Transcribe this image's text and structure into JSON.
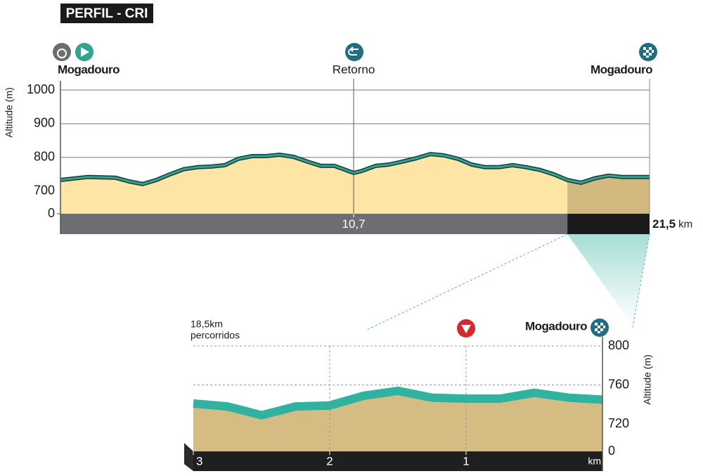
{
  "title": "PERFIL - CRI",
  "chart_data": [
    {
      "type": "area",
      "y_label": "Altitude (m)",
      "x_unit": "km",
      "x": [
        0,
        1,
        2,
        2.5,
        3,
        3.5,
        4,
        4.5,
        5,
        5.5,
        6,
        6.5,
        7,
        7.5,
        8,
        8.5,
        9,
        9.5,
        10,
        10.5,
        10.7,
        11,
        11.5,
        12,
        12.5,
        13,
        13.5,
        14,
        14.5,
        15,
        15.5,
        16,
        16.5,
        17,
        17.5,
        18,
        18.5,
        19,
        19.5,
        20,
        20.5,
        21,
        21.5
      ],
      "values": [
        733,
        742,
        740,
        729,
        721,
        733,
        750,
        765,
        771,
        773,
        777,
        796,
        804,
        804,
        808,
        802,
        788,
        775,
        775,
        760,
        754,
        760,
        775,
        779,
        788,
        798,
        810,
        806,
        796,
        779,
        771,
        771,
        777,
        771,
        763,
        750,
        733,
        725,
        738,
        746,
        742,
        742,
        742
      ],
      "xlim": [
        0,
        21.5
      ],
      "ylim": [
        633,
        1000
      ],
      "yticks": [
        0,
        700,
        800,
        900,
        1000
      ],
      "axis_break": true,
      "xticks": [
        {
          "value": 10.7,
          "label": "10,7"
        },
        {
          "value": 21.5,
          "label": "21,5"
        }
      ],
      "places": [
        {
          "name": "Mogadouro",
          "x": 0
        },
        {
          "name": "Retorno",
          "x": 10.7
        },
        {
          "name": "Mogadouro",
          "x": 21.5
        }
      ],
      "highlight": [
        18.5,
        21.5
      ],
      "color": "#fde6a5",
      "highlight_color": "#d3b97f",
      "line_color": "#2ca592"
    },
    {
      "type": "area",
      "y_label": "Altitude (m)",
      "x_unit": "km",
      "note": [
        "18,5km",
        "percorridos"
      ],
      "x": [
        3,
        2.75,
        2.5,
        2.25,
        2,
        1.75,
        1.5,
        1.25,
        1,
        0.75,
        0.5,
        0.25,
        0
      ],
      "values": [
        741,
        738,
        729,
        738,
        739,
        749,
        754,
        747,
        746,
        746,
        752,
        747,
        745
      ],
      "xlim": [
        3,
        0
      ],
      "ylim": [
        692,
        800
      ],
      "yticks": [
        0,
        720,
        760,
        800
      ],
      "axis_break": true,
      "xticks": [
        3,
        2,
        1
      ],
      "places": [
        {
          "name": "Mogadouro",
          "x": 0
        }
      ],
      "color": "#d4bc83",
      "line_color": "#2db3a0"
    }
  ]
}
